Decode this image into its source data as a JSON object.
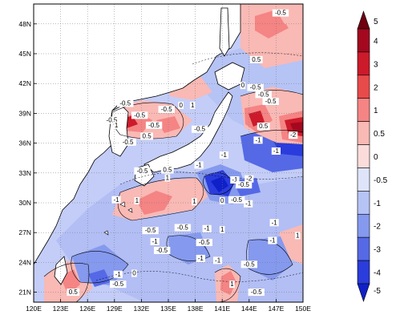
{
  "map": {
    "lat_labels": [
      "48N",
      "45N",
      "42N",
      "39N",
      "36N",
      "33N",
      "30N",
      "27N",
      "24N",
      "21N"
    ],
    "lon_labels": [
      "120E",
      "123E",
      "126E",
      "129E",
      "132E",
      "135E",
      "138E",
      "141E",
      "144E",
      "147E",
      "150E"
    ],
    "extent": {
      "lon_min": 120,
      "lon_max": 150,
      "lat_min": 20,
      "lat_max": 50
    },
    "gridlines": "dotted",
    "contour_labels": [
      {
        "text": "-0.5",
        "lon": 138.5,
        "lat": 37.2
      },
      {
        "text": "-0.5",
        "lon": 130.2,
        "lat": 39.8
      },
      {
        "text": "-0.5",
        "lon": 128.7,
        "lat": 38.1
      },
      {
        "text": "-0.5",
        "lon": 131.8,
        "lat": 38.6
      },
      {
        "text": "-0.5",
        "lon": 134.8,
        "lat": 39.2
      },
      {
        "text": "-0.5",
        "lon": 133.4,
        "lat": 37.6
      },
      {
        "text": "0",
        "lon": 136.4,
        "lat": 39.6
      },
      {
        "text": "1",
        "lon": 129.2,
        "lat": 37.6
      },
      {
        "text": "1",
        "lon": 137.7,
        "lat": 39.6
      },
      {
        "text": "0.5",
        "lon": 132.6,
        "lat": 36.5
      },
      {
        "text": "-0.5",
        "lon": 130.5,
        "lat": 35.9
      },
      {
        "text": "-0.5",
        "lon": 132.1,
        "lat": 33.0
      },
      {
        "text": "1",
        "lon": 134.9,
        "lat": 32.3
      },
      {
        "text": "0.5",
        "lon": 134.9,
        "lat": 33.1
      },
      {
        "text": "-1",
        "lon": 138.4,
        "lat": 33.6
      },
      {
        "text": "-1",
        "lon": 141.2,
        "lat": 34.6
      },
      {
        "text": "-1",
        "lon": 142.4,
        "lat": 32.1
      },
      {
        "text": "-2",
        "lon": 144.0,
        "lat": 32.2
      },
      {
        "text": "-0.5",
        "lon": 144.7,
        "lat": 41.4
      },
      {
        "text": "0",
        "lon": 143.3,
        "lat": 41.6
      },
      {
        "text": "-0.5",
        "lon": 145.6,
        "lat": 40.7
      },
      {
        "text": "0.5",
        "lon": 144.8,
        "lat": 44.2
      },
      {
        "text": "-0.5",
        "lon": 147.5,
        "lat": 48.9
      },
      {
        "text": "0.5",
        "lon": 145.6,
        "lat": 37.5
      },
      {
        "text": "-0.5",
        "lon": 146.4,
        "lat": 40.0
      },
      {
        "text": "-1",
        "lon": 145.0,
        "lat": 36.1
      },
      {
        "text": "-2",
        "lon": 148.9,
        "lat": 36.6
      },
      {
        "text": "-1",
        "lon": 147.0,
        "lat": 35.0
      },
      {
        "text": "-1",
        "lon": 129.2,
        "lat": 30.1
      },
      {
        "text": "1",
        "lon": 131.5,
        "lat": 30.0
      },
      {
        "text": "1",
        "lon": 137.9,
        "lat": 29.9
      },
      {
        "text": "0",
        "lon": 141.0,
        "lat": 30.0
      },
      {
        "text": "-0.5",
        "lon": 142.6,
        "lat": 30.1
      },
      {
        "text": "-1",
        "lon": 143.9,
        "lat": 29.7
      },
      {
        "text": "-0.5",
        "lon": 143.4,
        "lat": 31.6
      },
      {
        "text": "-0.5",
        "lon": 136.6,
        "lat": 27.3
      },
      {
        "text": "-1",
        "lon": 139.3,
        "lat": 27.2
      },
      {
        "text": "-0.5",
        "lon": 139.0,
        "lat": 25.8
      },
      {
        "text": "-0.5",
        "lon": 133.0,
        "lat": 27.0
      },
      {
        "text": "-1",
        "lon": 133.5,
        "lat": 25.9
      },
      {
        "text": "-0.5",
        "lon": 134.3,
        "lat": 25.0
      },
      {
        "text": "1",
        "lon": 141.0,
        "lat": 27.1
      },
      {
        "text": "-1",
        "lon": 146.8,
        "lat": 27.8
      },
      {
        "text": "-1",
        "lon": 146.6,
        "lat": 26.0
      },
      {
        "text": "-1",
        "lon": 140.5,
        "lat": 24.0
      },
      {
        "text": "-0.5",
        "lon": 144.0,
        "lat": 23.6
      },
      {
        "text": "1",
        "lon": 149.4,
        "lat": 26.5
      },
      {
        "text": "-1",
        "lon": 129.4,
        "lat": 22.6
      },
      {
        "text": "-0.5",
        "lon": 129.4,
        "lat": 21.6
      },
      {
        "text": "0",
        "lon": 131.2,
        "lat": 22.7
      },
      {
        "text": "0.5",
        "lon": 124.4,
        "lat": 20.8
      },
      {
        "text": "1",
        "lon": 142.1,
        "lat": 21.6
      },
      {
        "text": "-0.5",
        "lon": 144.8,
        "lat": 20.8
      },
      {
        "text": "-1",
        "lon": 138.6,
        "lat": 24.2
      }
    ]
  },
  "colorbar": {
    "labels": [
      "5",
      "4",
      "3",
      "2",
      "1",
      "0.5",
      "0",
      "-0.5",
      "-1",
      "-2",
      "-3",
      "-4",
      "-5"
    ],
    "colors": [
      "#6e0010",
      "#a3081f",
      "#cc1a2a",
      "#e84a4a",
      "#f58484",
      "#f9b9b5",
      "#fbdcdb",
      "#dfe4fa",
      "#b6c3f5",
      "#8599ee",
      "#5569e6",
      "#2a3cdb",
      "#1020c8"
    ]
  },
  "palette": {
    "land": "#ffffff",
    "coast": "#000000",
    "pos_weak": "#f9b9b5",
    "pos_mid": "#f58484",
    "pos_strong": "#cc1a2a",
    "neg_weak": "#b6c3f5",
    "neg_mid": "#8599ee",
    "neg_strong": "#2a3cdb",
    "neutral": "#dfe4fa"
  }
}
